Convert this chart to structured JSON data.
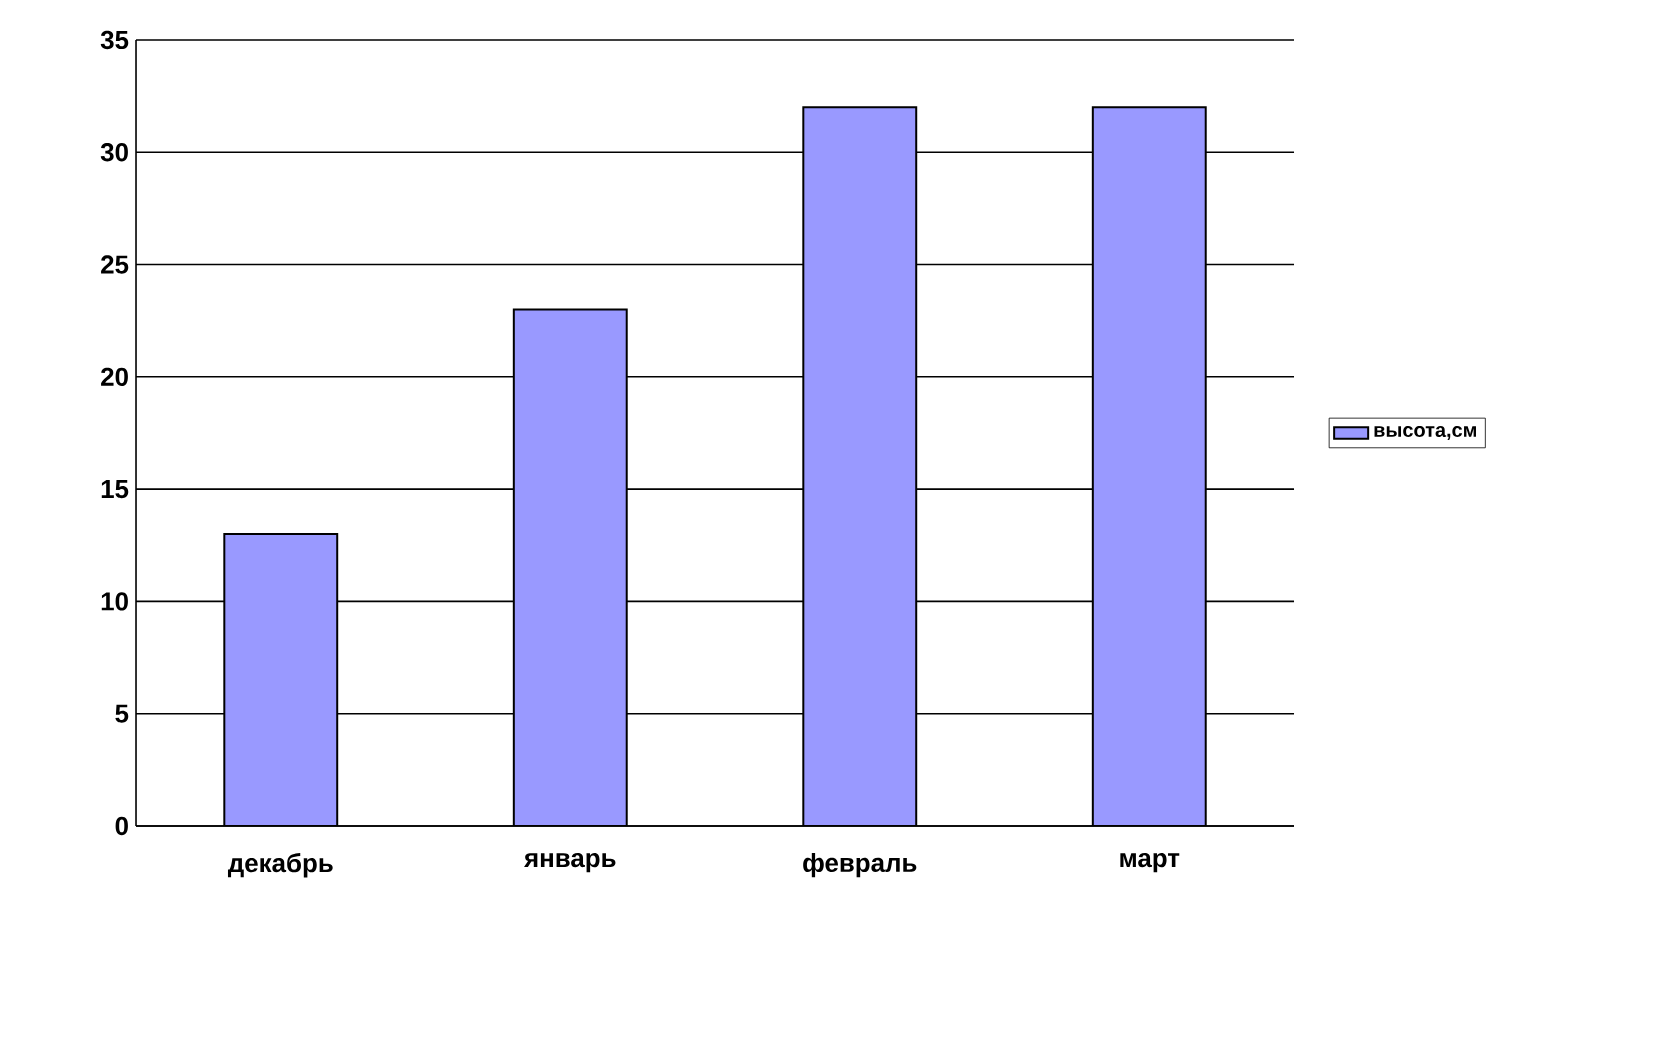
{
  "chart_data": {
    "type": "bar",
    "categories": [
      "декабрь",
      "январь",
      "февраль",
      "март"
    ],
    "series": [
      {
        "name": "высота,см",
        "color": "#9999ff",
        "values": [
          13,
          23,
          32,
          32
        ]
      }
    ],
    "ylim": [
      0,
      35
    ],
    "yticks": [
      0,
      5,
      10,
      15,
      20,
      25,
      30,
      35
    ],
    "grid": "y",
    "legend": "right"
  }
}
